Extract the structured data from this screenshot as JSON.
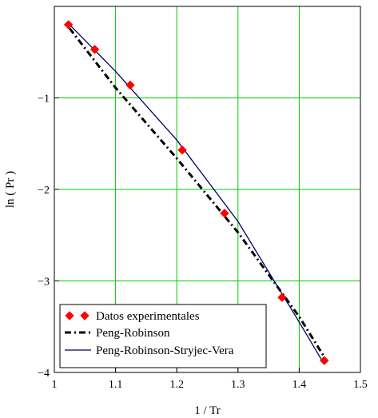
{
  "chart_data": {
    "type": "line",
    "xlabel": "1 / Tr",
    "ylabel": "ln ( Pr )",
    "xlim": [
      1.0,
      1.5
    ],
    "ylim": [
      -4.0,
      0.0
    ],
    "x_ticks": [
      1,
      1.1,
      1.2,
      1.3,
      1.4,
      1.5
    ],
    "x_tick_labels": [
      "1",
      "1.1",
      "1.2",
      "1.3",
      "1.4",
      "1.5"
    ],
    "y_ticks": [
      -1,
      -2,
      -3,
      -4
    ],
    "y_tick_labels": [
      "−1",
      "−2",
      "−3",
      "−4"
    ],
    "grid": true,
    "grid_color": "#00cc00",
    "legend_position": "bottom-left",
    "series": [
      {
        "name": "Datos experimentales",
        "style": "markers",
        "marker": "diamond",
        "color": "#ff0000",
        "x": [
          1.023,
          1.066,
          1.124,
          1.209,
          1.278,
          1.372,
          1.441
        ],
        "y": [
          -0.2,
          -0.47,
          -0.86,
          -1.57,
          -2.26,
          -3.18,
          -3.87
        ]
      },
      {
        "name": "Peng-Robinson",
        "style": "dash-dot",
        "color": "#000000",
        "x": [
          1.025,
          1.1,
          1.2,
          1.3,
          1.4,
          1.44
        ],
        "y": [
          -0.24,
          -0.89,
          -1.66,
          -2.47,
          -3.39,
          -3.82
        ]
      },
      {
        "name": "Peng-Robinson-Stryjec-Vera",
        "style": "solid",
        "color": "#000066",
        "x": [
          1.025,
          1.1,
          1.2,
          1.3,
          1.4,
          1.44
        ],
        "y": [
          -0.2,
          -0.71,
          -1.46,
          -2.35,
          -3.45,
          -3.9
        ]
      }
    ]
  }
}
